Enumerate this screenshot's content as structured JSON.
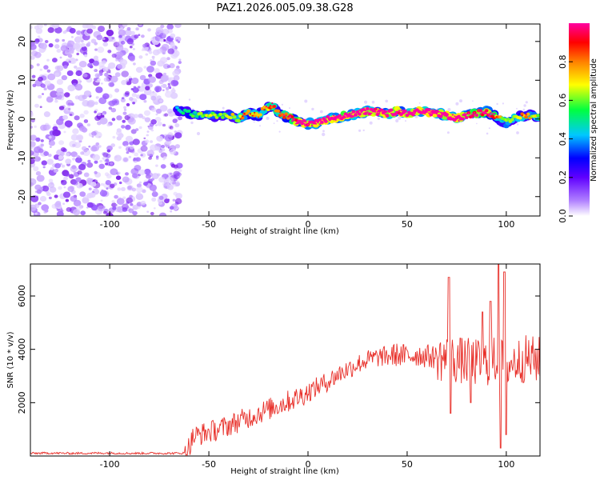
{
  "title": "PAZ1.2026.005.09.38.G28",
  "chart_data": [
    {
      "type": "heatmap",
      "name": "spectrogram",
      "xlabel": "Height of straight line (km)",
      "ylabel": "Frequency (Hz)",
      "xlim": [
        -140,
        117
      ],
      "ylim": [
        -25,
        24.5
      ],
      "xticks": [
        -100,
        -50,
        0,
        50,
        100
      ],
      "yticks": [
        -20,
        -10,
        0,
        10,
        20
      ],
      "xtick_labels": [
        "-100",
        "-50",
        "0",
        "50",
        "100"
      ],
      "ytick_labels": [
        "-20",
        "-10",
        "0",
        "10",
        "20"
      ],
      "noise_region_x": [
        -140,
        -66
      ],
      "ridge": {
        "x": [
          -66,
          -60,
          -55,
          -50,
          -45,
          -40,
          -35,
          -30,
          -25,
          -22,
          -18,
          -15,
          -10,
          -5,
          0,
          5,
          10,
          15,
          20,
          25,
          30,
          35,
          40,
          45,
          50,
          55,
          60,
          65,
          70,
          75,
          80,
          85,
          90,
          95,
          100,
          105,
          110,
          117
        ],
        "freq_hz": [
          2.5,
          1.5,
          0.8,
          1.2,
          0.5,
          1.0,
          0.0,
          1.5,
          1.0,
          2.5,
          3.5,
          1.5,
          0.5,
          -0.8,
          -1.2,
          -1.0,
          0.0,
          0.5,
          1.0,
          1.5,
          2.0,
          1.8,
          1.5,
          2.0,
          1.5,
          2.0,
          1.8,
          1.5,
          1.0,
          0.0,
          1.0,
          1.5,
          2.0,
          0.5,
          -1.0,
          0.5,
          1.0,
          0.5
        ],
        "amplitude": [
          0.35,
          0.4,
          0.45,
          0.5,
          0.45,
          0.5,
          0.55,
          0.6,
          0.55,
          0.6,
          0.65,
          0.6,
          0.7,
          0.8,
          0.85,
          0.9,
          0.9,
          0.85,
          0.85,
          0.9,
          0.9,
          0.85,
          0.9,
          0.85,
          0.9,
          0.95,
          0.95,
          0.9,
          0.9,
          0.95,
          0.8,
          0.75,
          0.8,
          0.6,
          0.5,
          0.55,
          0.6,
          0.5
        ]
      },
      "colorbar": {
        "label": "Normalized spectral amplitude",
        "range": [
          0.0,
          1.0
        ],
        "ticks": [
          0.0,
          0.2,
          0.4,
          0.6,
          0.8
        ],
        "tick_labels": [
          "0.0",
          "0.2",
          "0.4",
          "0.6",
          "0.8"
        ],
        "colors": [
          "#ffffff",
          "#8000ff",
          "#0000ff",
          "#00c0ff",
          "#00ff40",
          "#ffff00",
          "#ff8000",
          "#ff0000",
          "#ff00a0"
        ]
      }
    },
    {
      "type": "line",
      "name": "snr",
      "xlabel": "Height of straight line (km)",
      "ylabel": "SNR (10 * v/v)",
      "xlim": [
        -140,
        117
      ],
      "ylim": [
        0,
        7200
      ],
      "xticks": [
        -100,
        -50,
        0,
        50,
        100
      ],
      "yticks": [
        2000,
        4000,
        6000
      ],
      "xtick_labels": [
        "-100",
        "-50",
        "0",
        "50",
        "100"
      ],
      "ytick_labels": [
        "2000",
        "4000",
        "6000"
      ],
      "color": "#e8302a",
      "series": [
        {
          "name": "SNR",
          "x": [
            -140,
            -130,
            -120,
            -110,
            -100,
            -90,
            -80,
            -70,
            -62,
            -60,
            -58,
            -55,
            -50,
            -45,
            -40,
            -35,
            -30,
            -25,
            -20,
            -15,
            -10,
            -5,
            0,
            5,
            10,
            15,
            20,
            25,
            30,
            35,
            40,
            45,
            50,
            55,
            60,
            65,
            70,
            75,
            80,
            85,
            90,
            95,
            100,
            105,
            110,
            117
          ],
          "y": [
            100,
            110,
            100,
            105,
            110,
            100,
            105,
            100,
            110,
            350,
            700,
            800,
            900,
            1000,
            1150,
            1300,
            1450,
            1600,
            1750,
            1900,
            2050,
            2200,
            2400,
            2600,
            2800,
            3050,
            3250,
            3450,
            3600,
            3700,
            3750,
            3800,
            3750,
            3800,
            3750,
            3700,
            3650,
            3600,
            3550,
            3500,
            3500,
            3600,
            3450,
            3550,
            3650,
            3600
          ]
        }
      ],
      "spikes": [
        {
          "x": 71,
          "y": 6700
        },
        {
          "x": 72,
          "y": 1600
        },
        {
          "x": 96,
          "y": 7200
        },
        {
          "x": 97,
          "y": 300
        },
        {
          "x": 99,
          "y": 6900
        },
        {
          "x": 100,
          "y": 800
        },
        {
          "x": 88,
          "y": 5400
        },
        {
          "x": 92,
          "y": 5800
        },
        {
          "x": 82,
          "y": 2000
        }
      ]
    }
  ]
}
